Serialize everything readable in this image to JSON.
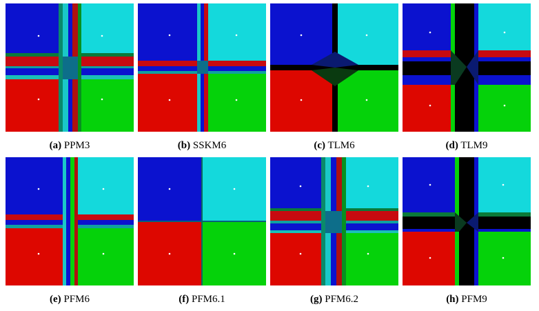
{
  "colors": {
    "blue": "#0b12cf",
    "cyan": "#14d9dc",
    "red": "#dd0700",
    "green": "#05d20a",
    "black": "#000000"
  },
  "panels": [
    {
      "id": "a",
      "letter": "(a)",
      "label": "PPM3"
    },
    {
      "id": "b",
      "letter": "(b)",
      "label": "SSKM6"
    },
    {
      "id": "c",
      "letter": "(c)",
      "label": "TLM6"
    },
    {
      "id": "d",
      "letter": "(d)",
      "label": "TLM9"
    },
    {
      "id": "e",
      "letter": "(e)",
      "label": "PFM6"
    },
    {
      "id": "f",
      "letter": "(f)",
      "label": "PFM6.1"
    },
    {
      "id": "g",
      "letter": "(g)",
      "label": "PFM6.2"
    },
    {
      "id": "h",
      "letter": "(h)",
      "label": "PFM9"
    }
  ]
}
